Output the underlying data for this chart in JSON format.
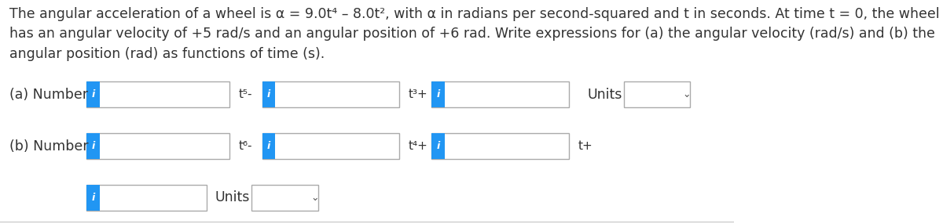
{
  "background_color": "#ffffff",
  "border_color": "#dddddd",
  "text_color": "#333333",
  "paragraph": "The angular acceleration of a wheel is α = 9.0t⁴ – 8.0t², with α in radians per second-squared and t in seconds. At time t = 0, the wheel\nhas an angular velocity of +5 rad/s and an angular position of +6 rad. Write expressions for (a) the angular velocity (rad/s) and (b) the\nangular position (rad) as functions of time (s).",
  "paragraph_fontsize": 12.5,
  "label_fontsize": 12.5,
  "icon_color": "#2196F3",
  "icon_text": "i",
  "icon_text_color": "#ffffff",
  "row_a_label": "(a) Number",
  "row_b_label": "(b) Number",
  "row_a_t5": "t⁵-",
  "row_a_t3": "t³+",
  "row_b_t6": "t⁶-",
  "row_b_t4": "t⁴+",
  "row_b_t": "t+",
  "units_label": "Units",
  "bottom_units_label": "Units",
  "box_border": "#bbbbbb",
  "box_fill": "#ffffff"
}
